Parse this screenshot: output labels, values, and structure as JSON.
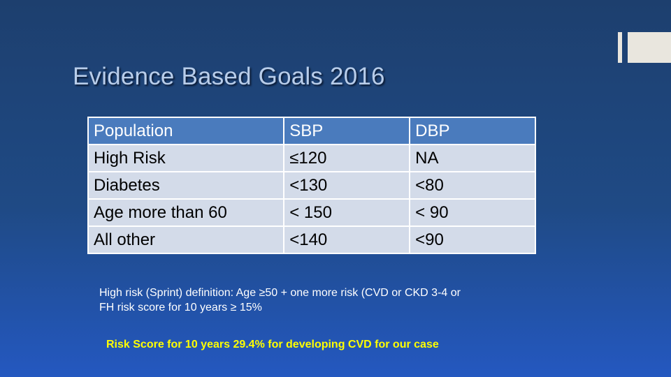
{
  "slide": {
    "title": "Evidence Based Goals 2016",
    "table": {
      "header": [
        "Population",
        "SBP",
        "DBP"
      ],
      "rows": [
        [
          "High Risk",
          "≤120",
          "NA"
        ],
        [
          "Diabetes",
          "<130",
          "<80"
        ],
        [
          "Age more than 60",
          "< 150",
          "< 90"
        ],
        [
          "All other",
          "<140",
          "<90"
        ]
      ]
    },
    "definition_line1": "High risk (Sprint) definition: Age  ≥50 + one more risk (CVD or CKD 3-4 or",
    "definition_line2": "FH risk score for 10 years ≥ 15%",
    "risk_score_note": "Risk Score for 10 years 29.4% for developing CVD for our case"
  },
  "colors": {
    "background": "#1f4a85",
    "title": "#b8cdea",
    "table_header": "#4a7bbd",
    "table_body": "#d3dbe9",
    "highlight_text": "#ffff00"
  }
}
